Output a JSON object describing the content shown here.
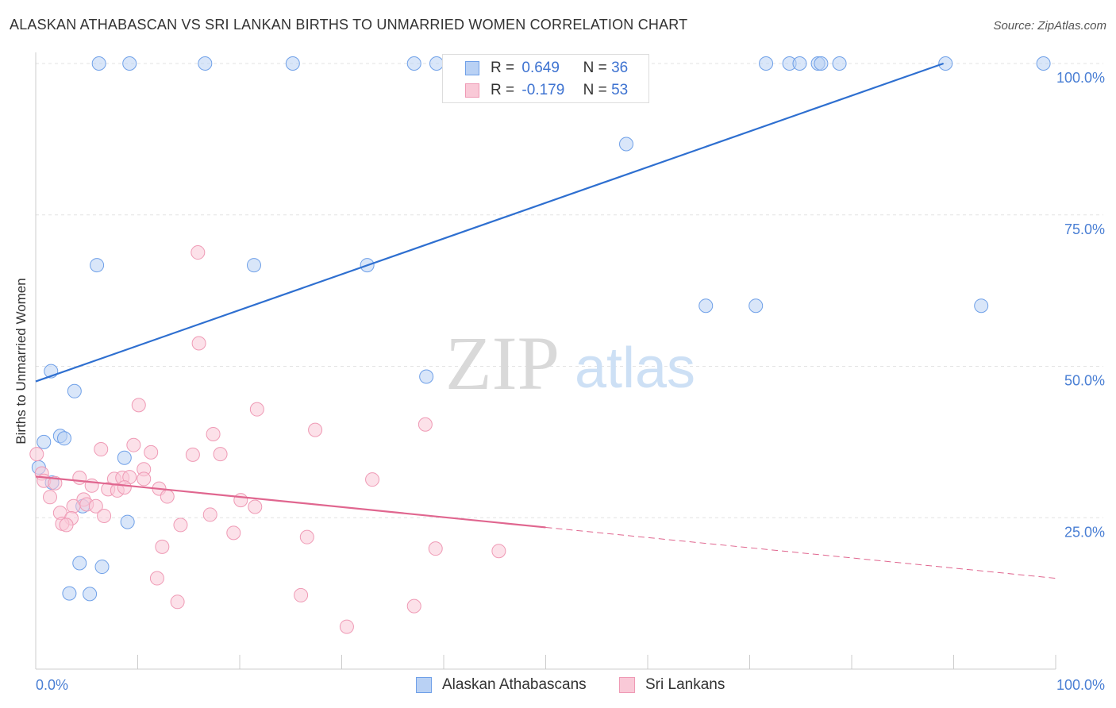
{
  "title": "ALASKAN ATHABASCAN VS SRI LANKAN BIRTHS TO UNMARRIED WOMEN CORRELATION CHART",
  "source": "Source: ZipAtlas.com",
  "watermark": {
    "zip": "ZIP",
    "atlas": "atlas"
  },
  "legend": {
    "series1": {
      "r_label": "R =",
      "r_value": "0.649",
      "n_label": "N =",
      "n_value": "36"
    },
    "series2": {
      "r_label": "R =",
      "r_value": "-0.179",
      "n_label": "N =",
      "n_value": "53"
    }
  },
  "chart_data": {
    "type": "scatter",
    "title": "ALASKAN ATHABASCAN VS SRI LANKAN BIRTHS TO UNMARRIED WOMEN CORRELATION CHART",
    "xlabel": "",
    "ylabel": "Births to Unmarried Women",
    "xlim": [
      0,
      100
    ],
    "ylim": [
      0,
      100
    ],
    "x_tick_labels": [
      "0.0%",
      "100.0%"
    ],
    "y_ticks": [
      25,
      50,
      75,
      100
    ],
    "y_tick_labels": [
      "25.0%",
      "50.0%",
      "75.0%",
      "100.0%"
    ],
    "series": [
      {
        "name": "Alaskan Athabascans",
        "color": "#6fa0e8",
        "fill": "#b9d1f4",
        "trend": {
          "x": [
            0,
            89
          ],
          "y": [
            47.5,
            100
          ],
          "color": "#2e6fd0"
        },
        "points": [
          {
            "x": 6.2,
            "y": 100
          },
          {
            "x": 9.2,
            "y": 100
          },
          {
            "x": 16.6,
            "y": 100
          },
          {
            "x": 25.2,
            "y": 100
          },
          {
            "x": 37.1,
            "y": 100
          },
          {
            "x": 39.3,
            "y": 100
          },
          {
            "x": 71.6,
            "y": 100
          },
          {
            "x": 73.9,
            "y": 100
          },
          {
            "x": 74.9,
            "y": 100
          },
          {
            "x": 76.7,
            "y": 100
          },
          {
            "x": 77.0,
            "y": 100
          },
          {
            "x": 78.8,
            "y": 100
          },
          {
            "x": 89.2,
            "y": 100
          },
          {
            "x": 98.8,
            "y": 100
          },
          {
            "x": 57.9,
            "y": 86.7
          },
          {
            "x": 6.0,
            "y": 66.7
          },
          {
            "x": 21.4,
            "y": 66.7
          },
          {
            "x": 32.5,
            "y": 66.7
          },
          {
            "x": 65.7,
            "y": 60.0
          },
          {
            "x": 70.6,
            "y": 60.0
          },
          {
            "x": 92.7,
            "y": 60.0
          },
          {
            "x": 1.5,
            "y": 49.2
          },
          {
            "x": 3.8,
            "y": 45.9
          },
          {
            "x": 38.3,
            "y": 48.3
          },
          {
            "x": 2.4,
            "y": 38.5
          },
          {
            "x": 2.8,
            "y": 38.1
          },
          {
            "x": 0.8,
            "y": 37.5
          },
          {
            "x": 8.7,
            "y": 34.9
          },
          {
            "x": 0.3,
            "y": 33.3
          },
          {
            "x": 1.6,
            "y": 30.8
          },
          {
            "x": 4.6,
            "y": 26.9
          },
          {
            "x": 9.0,
            "y": 24.3
          },
          {
            "x": 4.3,
            "y": 17.5
          },
          {
            "x": 6.5,
            "y": 16.9
          },
          {
            "x": 3.3,
            "y": 12.5
          },
          {
            "x": 5.3,
            "y": 12.4
          }
        ]
      },
      {
        "name": "Sri Lankans",
        "color": "#ef9ab5",
        "fill": "#f9c9d7",
        "trend": {
          "x": [
            0,
            50
          ],
          "y": [
            31.8,
            23.4
          ],
          "color": "#e0668f",
          "dashed_extension_to_x": 100,
          "dashed_extension_to_y": 15.0
        },
        "points": [
          {
            "x": 15.9,
            "y": 68.8
          },
          {
            "x": 16.0,
            "y": 53.8
          },
          {
            "x": 10.1,
            "y": 43.6
          },
          {
            "x": 21.7,
            "y": 42.9
          },
          {
            "x": 38.2,
            "y": 40.4
          },
          {
            "x": 27.4,
            "y": 39.5
          },
          {
            "x": 17.4,
            "y": 38.8
          },
          {
            "x": 9.6,
            "y": 37.0
          },
          {
            "x": 6.4,
            "y": 36.3
          },
          {
            "x": 11.3,
            "y": 35.8
          },
          {
            "x": 15.4,
            "y": 35.4
          },
          {
            "x": 18.1,
            "y": 35.5
          },
          {
            "x": 10.6,
            "y": 33.0
          },
          {
            "x": 0.1,
            "y": 35.5
          },
          {
            "x": 0.6,
            "y": 32.3
          },
          {
            "x": 0.8,
            "y": 31.1
          },
          {
            "x": 1.9,
            "y": 30.7
          },
          {
            "x": 4.3,
            "y": 31.6
          },
          {
            "x": 5.5,
            "y": 30.3
          },
          {
            "x": 7.7,
            "y": 31.4
          },
          {
            "x": 8.5,
            "y": 31.6
          },
          {
            "x": 9.2,
            "y": 31.7
          },
          {
            "x": 10.6,
            "y": 31.4
          },
          {
            "x": 33.0,
            "y": 31.3
          },
          {
            "x": 7.1,
            "y": 29.7
          },
          {
            "x": 8.0,
            "y": 29.5
          },
          {
            "x": 8.7,
            "y": 30.0
          },
          {
            "x": 12.1,
            "y": 29.8
          },
          {
            "x": 1.4,
            "y": 28.4
          },
          {
            "x": 4.7,
            "y": 28.0
          },
          {
            "x": 12.9,
            "y": 28.5
          },
          {
            "x": 20.1,
            "y": 27.9
          },
          {
            "x": 3.7,
            "y": 26.9
          },
          {
            "x": 5.0,
            "y": 27.2
          },
          {
            "x": 5.9,
            "y": 26.9
          },
          {
            "x": 21.5,
            "y": 26.8
          },
          {
            "x": 2.4,
            "y": 25.8
          },
          {
            "x": 3.5,
            "y": 24.9
          },
          {
            "x": 6.7,
            "y": 25.3
          },
          {
            "x": 17.1,
            "y": 25.5
          },
          {
            "x": 2.6,
            "y": 24.0
          },
          {
            "x": 3.0,
            "y": 23.8
          },
          {
            "x": 14.2,
            "y": 23.8
          },
          {
            "x": 19.4,
            "y": 22.5
          },
          {
            "x": 26.6,
            "y": 21.8
          },
          {
            "x": 12.4,
            "y": 20.2
          },
          {
            "x": 39.2,
            "y": 19.9
          },
          {
            "x": 45.4,
            "y": 19.5
          },
          {
            "x": 11.9,
            "y": 15.0
          },
          {
            "x": 13.9,
            "y": 11.1
          },
          {
            "x": 26.0,
            "y": 12.2
          },
          {
            "x": 37.1,
            "y": 10.4
          },
          {
            "x": 30.5,
            "y": 7.0
          }
        ]
      }
    ]
  }
}
